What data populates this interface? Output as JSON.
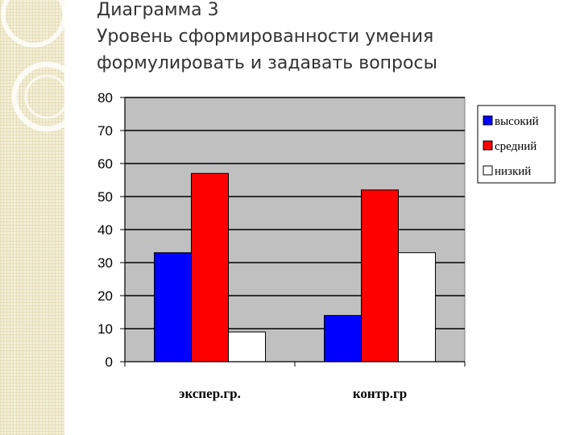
{
  "title": {
    "line1": "Диаграмма 3",
    "line2": "Уровень сформированности умения",
    "line3": "формулировать и задавать вопросы"
  },
  "chart_data": {
    "type": "bar",
    "categories": [
      "экспер.гр.",
      "контр.гр"
    ],
    "series": [
      {
        "name": "высокий",
        "color": "#0000ff",
        "values": [
          33,
          14
        ]
      },
      {
        "name": "средний",
        "color": "#ff0000",
        "values": [
          57,
          52
        ]
      },
      {
        "name": "низкий",
        "color": "#ffffff",
        "values": [
          9,
          33
        ]
      }
    ],
    "ylim": [
      0,
      80
    ],
    "yticks": [
      0,
      10,
      20,
      30,
      40,
      50,
      60,
      70,
      80
    ],
    "grid": true,
    "plot_background": "#c0c0c0",
    "legend_position": "right",
    "xlabel": "",
    "ylabel": ""
  }
}
